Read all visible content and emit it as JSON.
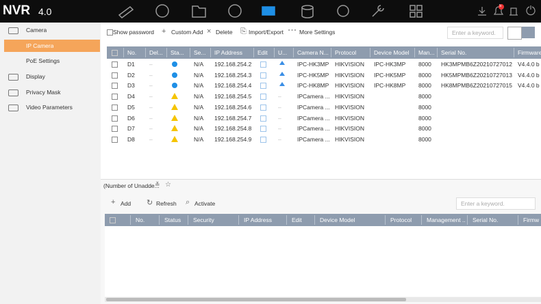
{
  "header": {
    "logo": "NVR",
    "version": "4.0",
    "badge": "5"
  },
  "sidebar": [
    "Camera",
    "IP Camera",
    "PoE Settings",
    "Display",
    "Privacy Mask",
    "Video Parameters"
  ],
  "toolbar": {
    "show_password": "Show password",
    "buttons": [
      "Custom Add",
      "Delete",
      "Import/Export",
      "More Settings"
    ],
    "search_placeholder": "Enter a keyword."
  },
  "table": {
    "columns": [
      "No.",
      "Del...",
      "Sta...",
      "Se...",
      "IP Address",
      "Edit",
      "U...",
      "Camera N...",
      "Protocol",
      "Device Model",
      "Man...",
      "Serial No.",
      "Firmware"
    ],
    "rows": [
      {
        "no": "D1",
        "del": "–",
        "online": true,
        "security": "N/A",
        "ip": "192.168.254.2",
        "name": "IPC-HK3MP",
        "protocol": "HIKVISION",
        "model": "IPC-HK3MP",
        "port": "8000",
        "serial": "HK3MPMB6Z20210727012",
        "firmware": "V4.4.0 b"
      },
      {
        "no": "D2",
        "del": "–",
        "online": true,
        "security": "N/A",
        "ip": "192.168.254.3",
        "name": "IPC-HK5MP",
        "protocol": "HIKVISION",
        "model": "IPC-HK5MP",
        "port": "8000",
        "serial": "HK5MPMB6Z20210727013",
        "firmware": "V4.4.0 b"
      },
      {
        "no": "D3",
        "del": "–",
        "online": true,
        "security": "N/A",
        "ip": "192.168.254.4",
        "name": "IPC-HK8MP",
        "protocol": "HIKVISION",
        "model": "IPC-HK8MP",
        "port": "8000",
        "serial": "HK8MPMB6Z20210727015",
        "firmware": "V4.4.0 b"
      },
      {
        "no": "D4",
        "del": "–",
        "online": false,
        "security": "N/A",
        "ip": "192.168.254.5",
        "upgrade": "–",
        "name": "IPCamera ...",
        "protocol": "HIKVISION",
        "port": "8000"
      },
      {
        "no": "D5",
        "del": "–",
        "online": false,
        "security": "N/A",
        "ip": "192.168.254.6",
        "upgrade": "–",
        "name": "IPCamera ...",
        "protocol": "HIKVISION",
        "port": "8000"
      },
      {
        "no": "D6",
        "del": "–",
        "online": false,
        "security": "N/A",
        "ip": "192.168.254.7",
        "upgrade": "–",
        "name": "IPCamera ...",
        "protocol": "HIKVISION",
        "port": "8000"
      },
      {
        "no": "D7",
        "del": "–",
        "online": false,
        "security": "N/A",
        "ip": "192.168.254.8",
        "upgrade": "–",
        "name": "IPCamera ...",
        "protocol": "HIKVISION",
        "port": "8000"
      },
      {
        "no": "D8",
        "del": "–",
        "online": false,
        "security": "N/A",
        "ip": "192.168.254.9",
        "upgrade": "–",
        "name": "IPCamera ...",
        "protocol": "HIKVISION",
        "port": "8000"
      }
    ]
  },
  "unadded": {
    "title": "(Number of Unadde...",
    "buttons": [
      "Add",
      "Refresh",
      "Activate"
    ],
    "search_placeholder": "Enter a keyword.",
    "columns": [
      "No.",
      "Status",
      "Security",
      "IP Address",
      "Edit",
      "Device Model",
      "Protocol",
      "Management ...",
      "Serial No.",
      "Firmw"
    ]
  }
}
